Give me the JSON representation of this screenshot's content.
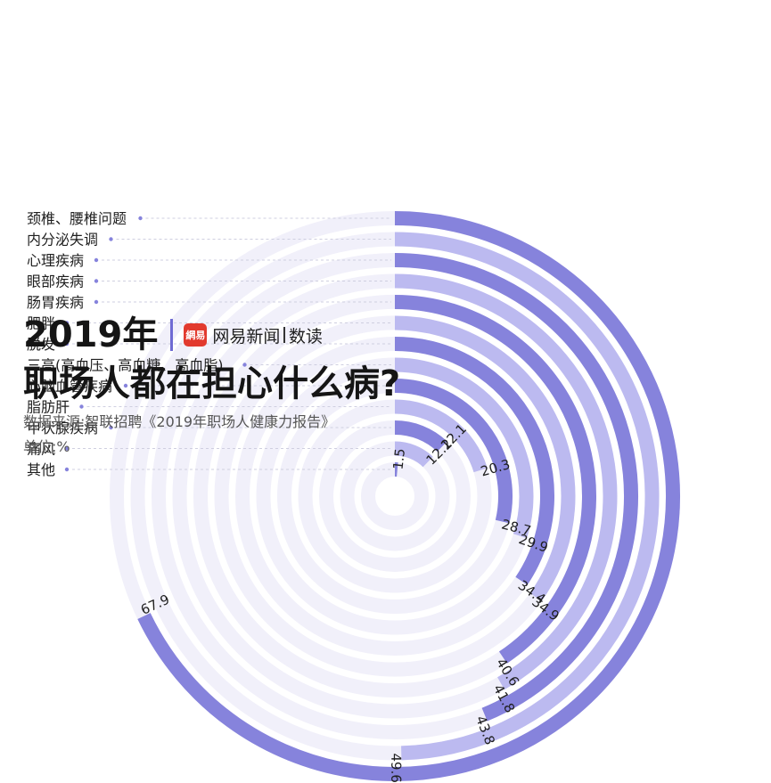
{
  "header": {
    "year_title": "2019年",
    "brand_logo": "網易",
    "brand_name": "网易新闻",
    "brand_column": "数读",
    "main_title": "职场人都在担心什么病?",
    "source": "数据来源:智联招聘《2019年职场人健康力报告》",
    "unit": "单位:%"
  },
  "colors": {
    "dark_ring": "#8683dc",
    "light_ring": "#bcbaf0",
    "track": "#f1f0fa",
    "dot": "#8683dc",
    "dash": "#cfcfe0"
  },
  "chart_data": {
    "type": "radial-bar",
    "title": "职场人都在担心什么病?",
    "unit": "%",
    "categories": [
      "颈椎、腰椎问题",
      "内分泌失调",
      "心理疾病",
      "眼部疾病",
      "肠胃疾病",
      "肥胖",
      "脱发",
      "三高(高血压、高血糖、高血脂)",
      "心脑血管疾病",
      "脂肪肝",
      "甲状腺疾病",
      "痛风",
      "其他"
    ],
    "values": [
      67.9,
      49.6,
      43.8,
      41.8,
      40.6,
      34.9,
      34.4,
      29.9,
      28.7,
      20.3,
      12.1,
      12.2,
      1.5
    ],
    "value_labels": [
      "67.9",
      "49.6",
      "43.8",
      "41.8",
      "40.6",
      "34.9",
      "34.4",
      "29.9",
      "28.7",
      "20.3",
      "12.1",
      "12.2",
      "1.5"
    ],
    "max_value": 100
  }
}
